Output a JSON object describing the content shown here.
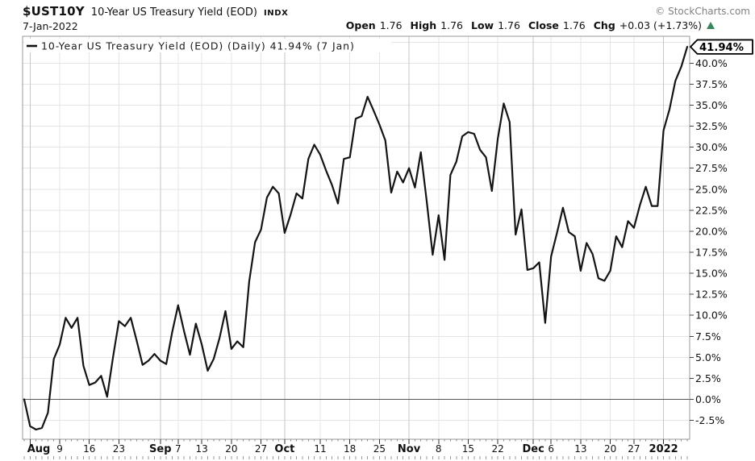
{
  "header": {
    "symbol": "$UST10Y",
    "title": "10-Year US Treasury Yield (EOD)",
    "exchange": "INDX",
    "copyright": "© StockCharts.com",
    "date": "7-Jan-2022",
    "quote": [
      {
        "label": "Open",
        "value": "1.76"
      },
      {
        "label": "High",
        "value": "1.76"
      },
      {
        "label": "Low",
        "value": "1.76"
      },
      {
        "label": "Close",
        "value": "1.76"
      },
      {
        "label": "Chg",
        "value": "+0.03 (+1.73%)"
      }
    ],
    "up_color": "#2E8B57"
  },
  "chart_data": {
    "type": "line",
    "legend": "10-Year US Treasury Yield (EOD) (Daily) 41.94% (7 Jan)",
    "last_value": 41.94,
    "last_value_label": "41.94%",
    "ylim": [
      -4.75,
      43.2
    ],
    "y_ticks": [
      -2.5,
      0,
      2.5,
      5,
      7.5,
      10,
      12.5,
      15,
      17.5,
      20,
      22.5,
      25,
      27.5,
      30,
      32.5,
      35,
      37.5,
      40
    ],
    "y_tick_suffix": "%",
    "zero_line": 0,
    "x_ticks": [
      {
        "i": 1,
        "label": "Aug",
        "month": true
      },
      {
        "i": 6,
        "label": "9"
      },
      {
        "i": 11,
        "label": "16"
      },
      {
        "i": 16,
        "label": "23"
      },
      {
        "i": 23,
        "label": "Sep",
        "month": true
      },
      {
        "i": 26,
        "label": "7"
      },
      {
        "i": 30,
        "label": "13"
      },
      {
        "i": 35,
        "label": "20"
      },
      {
        "i": 40,
        "label": "27"
      },
      {
        "i": 44,
        "label": "Oct",
        "month": true
      },
      {
        "i": 50,
        "label": "11"
      },
      {
        "i": 55,
        "label": "18"
      },
      {
        "i": 60,
        "label": "25"
      },
      {
        "i": 65,
        "label": "Nov",
        "month": true
      },
      {
        "i": 70,
        "label": "8"
      },
      {
        "i": 75,
        "label": "15"
      },
      {
        "i": 80,
        "label": "22"
      },
      {
        "i": 86,
        "label": "Dec",
        "month": true
      },
      {
        "i": 89,
        "label": "6"
      },
      {
        "i": 94,
        "label": "13"
      },
      {
        "i": 99,
        "label": "20"
      },
      {
        "i": 103,
        "label": "27"
      },
      {
        "i": 108,
        "label": "2022",
        "month": true
      }
    ],
    "values": [
      0.0,
      -3.2,
      -3.6,
      -3.4,
      -1.6,
      4.8,
      6.5,
      9.7,
      8.5,
      9.7,
      4.0,
      1.7,
      2.0,
      2.8,
      0.3,
      5.0,
      9.3,
      8.7,
      9.7,
      7.0,
      4.1,
      4.6,
      5.4,
      4.6,
      4.2,
      8.0,
      11.2,
      8.1,
      5.3,
      9.0,
      6.5,
      3.4,
      4.8,
      7.3,
      10.5,
      6.0,
      6.9,
      6.2,
      14.0,
      18.7,
      20.2,
      24.0,
      25.3,
      24.5,
      19.8,
      22.0,
      24.5,
      23.9,
      28.6,
      30.3,
      29.1,
      27.2,
      25.5,
      23.3,
      28.6,
      28.8,
      33.4,
      33.7,
      36.0,
      34.4,
      32.7,
      30.8,
      24.6,
      27.1,
      25.8,
      27.5,
      25.2,
      29.4,
      23.5,
      17.2,
      21.9,
      16.6,
      26.7,
      28.3,
      31.3,
      31.8,
      31.6,
      29.7,
      28.8,
      24.8,
      31.0,
      35.2,
      33.0,
      19.6,
      22.6,
      15.4,
      15.6,
      16.3,
      9.1,
      17.0,
      19.8,
      22.8,
      19.9,
      19.4,
      15.3,
      18.6,
      17.3,
      14.4,
      14.1,
      15.3,
      19.4,
      18.1,
      21.2,
      20.4,
      23.1,
      25.3,
      23.0,
      23.0,
      32.0,
      34.5,
      37.9,
      39.6,
      41.94
    ],
    "line_color": "#141414",
    "grid_color": "#e4e4e4",
    "month_grid_color": "#c6c6c6",
    "zero_line_color": "#555555",
    "border_color": "#999999"
  }
}
